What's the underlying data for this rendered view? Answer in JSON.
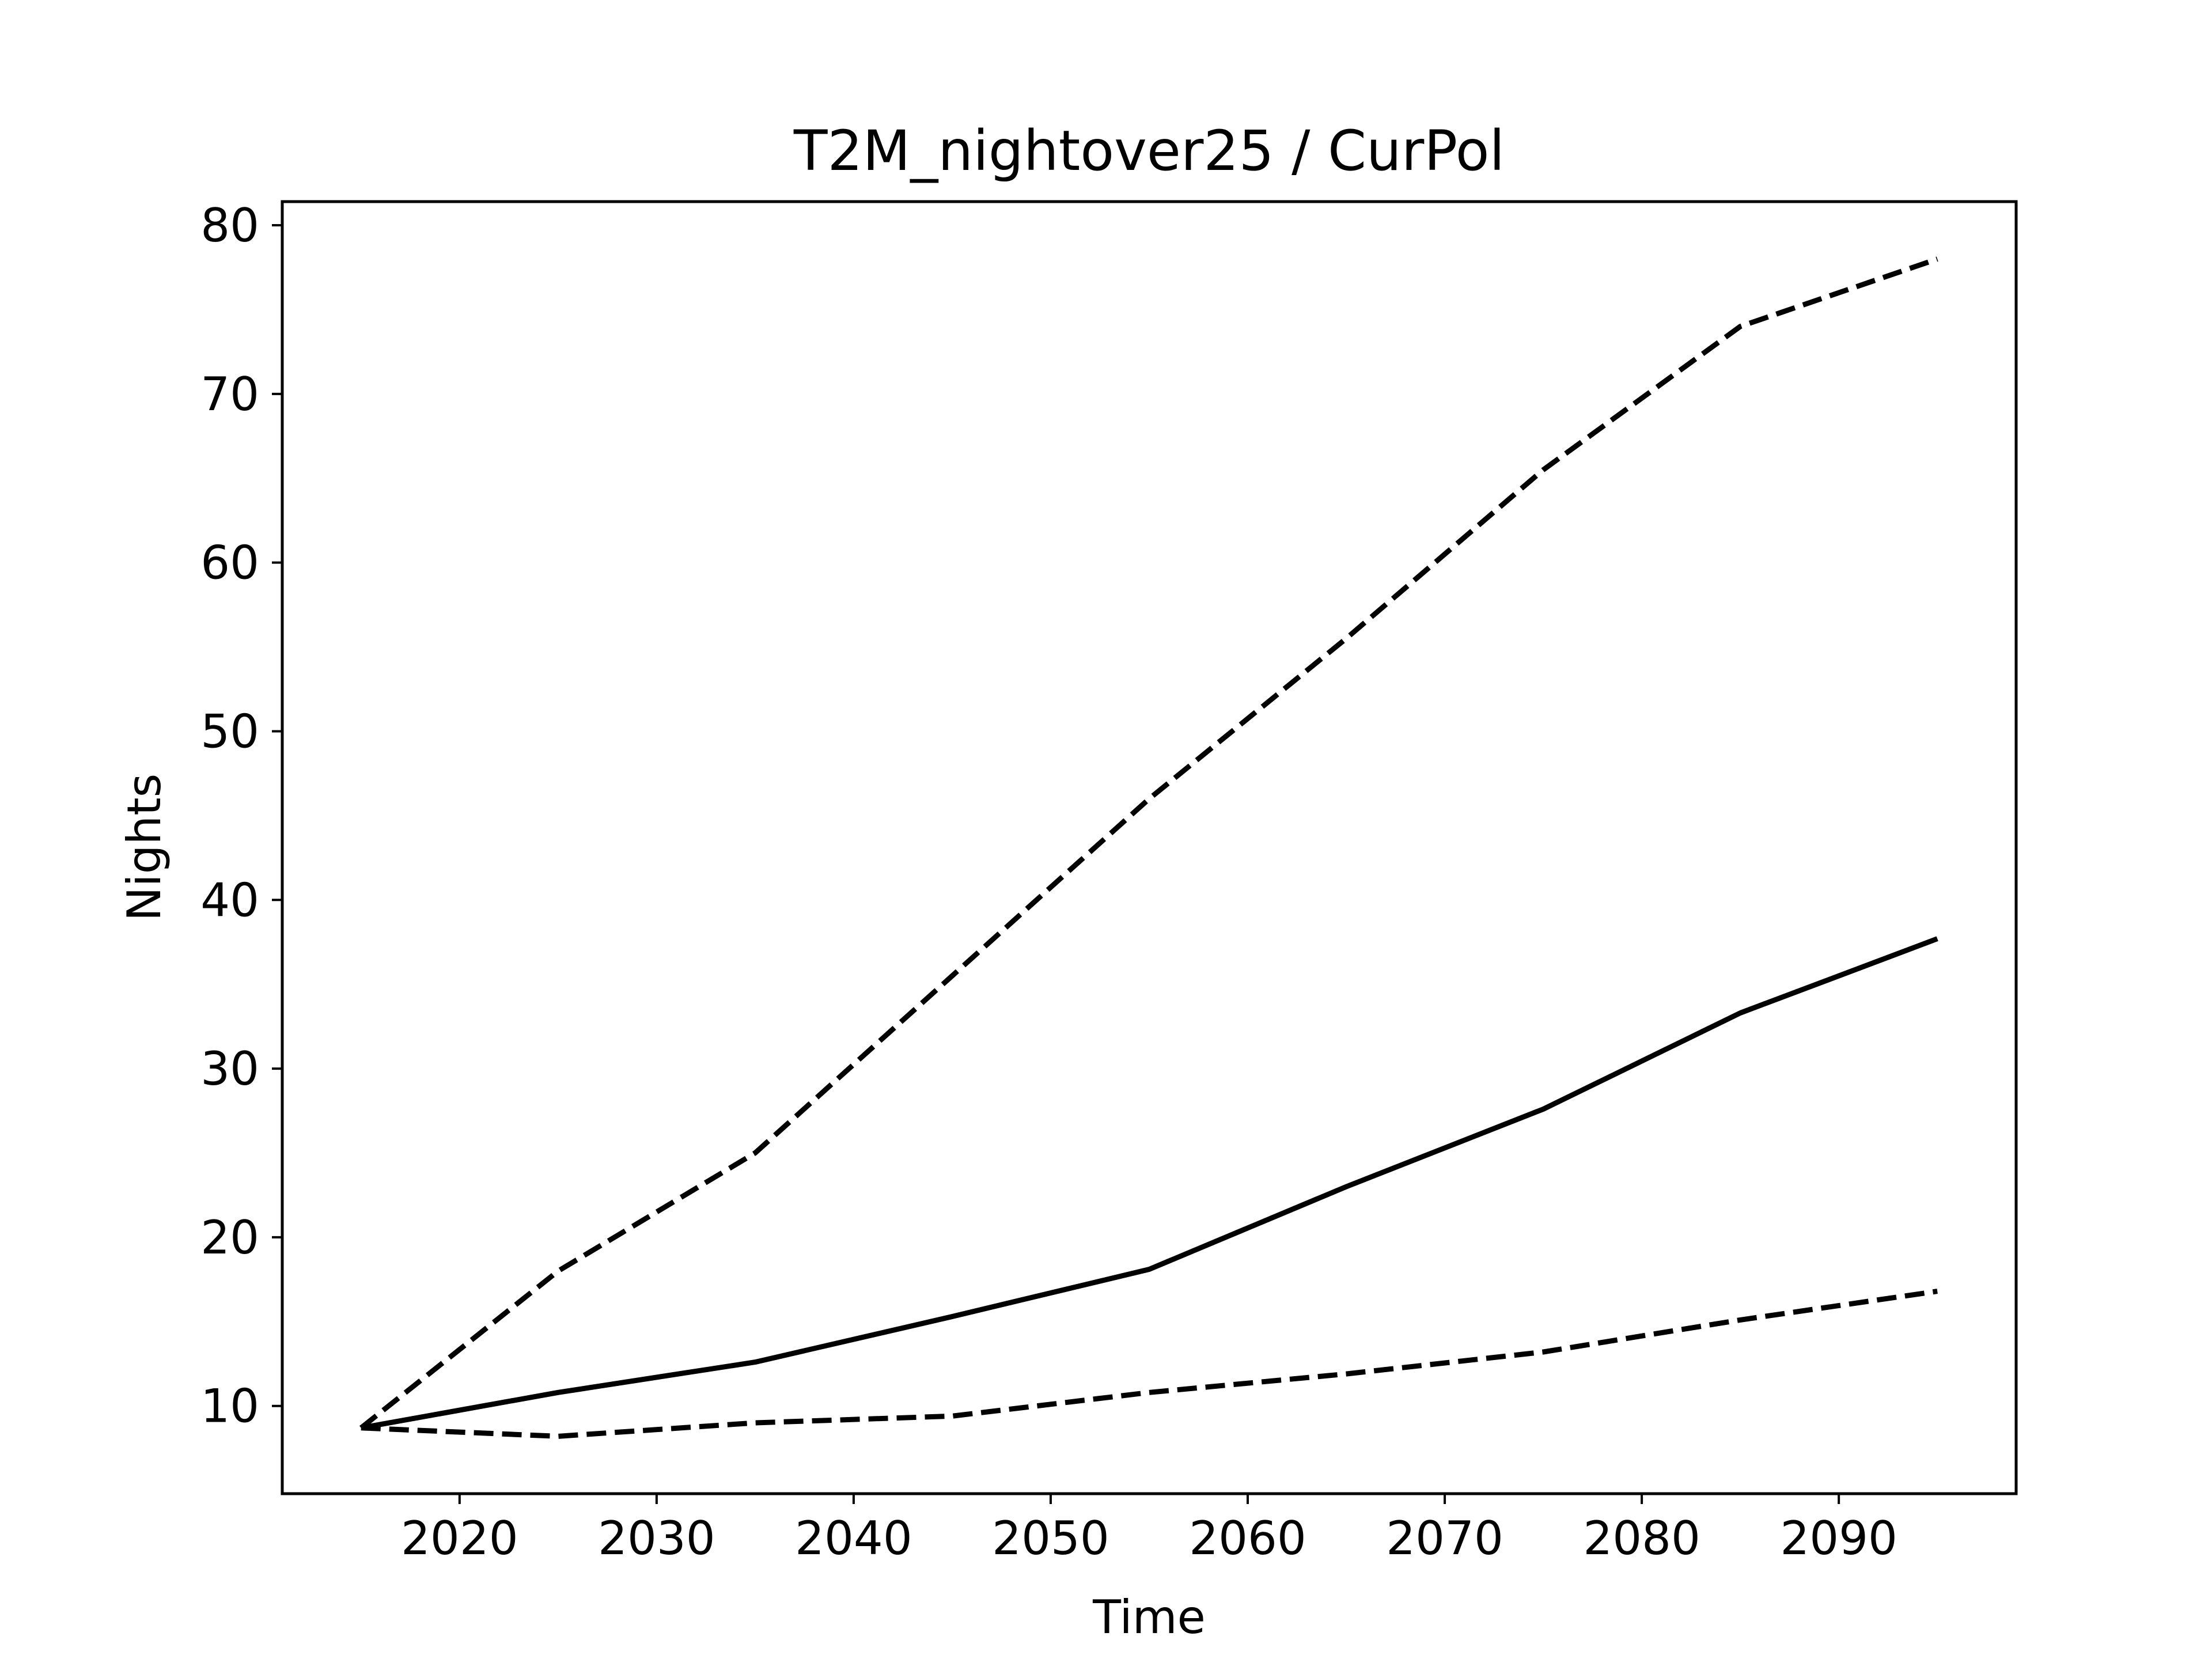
{
  "chart_data": {
    "type": "line",
    "title": "T2M_nightover25 / CurPol",
    "xlabel": "Time",
    "ylabel": "Nights",
    "xlim": [
      2011,
      2099
    ],
    "ylim": [
      4.8,
      81.4
    ],
    "xticks": [
      2020,
      2030,
      2040,
      2050,
      2060,
      2070,
      2080,
      2090
    ],
    "yticks": [
      10,
      20,
      30,
      40,
      50,
      60,
      70,
      80
    ],
    "grid": false,
    "legend": "none",
    "x": [
      2015,
      2025,
      2035,
      2045,
      2055,
      2065,
      2075,
      2085,
      2095
    ],
    "series": [
      {
        "style": "dashed",
        "color": "#000000",
        "values": [
          8.7,
          18.0,
          25.0,
          35.5,
          46.0,
          55.5,
          65.5,
          74.0,
          78.0
        ]
      },
      {
        "style": "solid",
        "color": "#000000",
        "values": [
          8.7,
          10.8,
          12.6,
          15.3,
          18.1,
          23.0,
          27.6,
          33.3,
          37.7
        ]
      },
      {
        "style": "dashed",
        "color": "#000000",
        "values": [
          8.7,
          8.2,
          9.0,
          9.4,
          10.8,
          11.9,
          13.2,
          15.1,
          16.8
        ]
      }
    ]
  }
}
